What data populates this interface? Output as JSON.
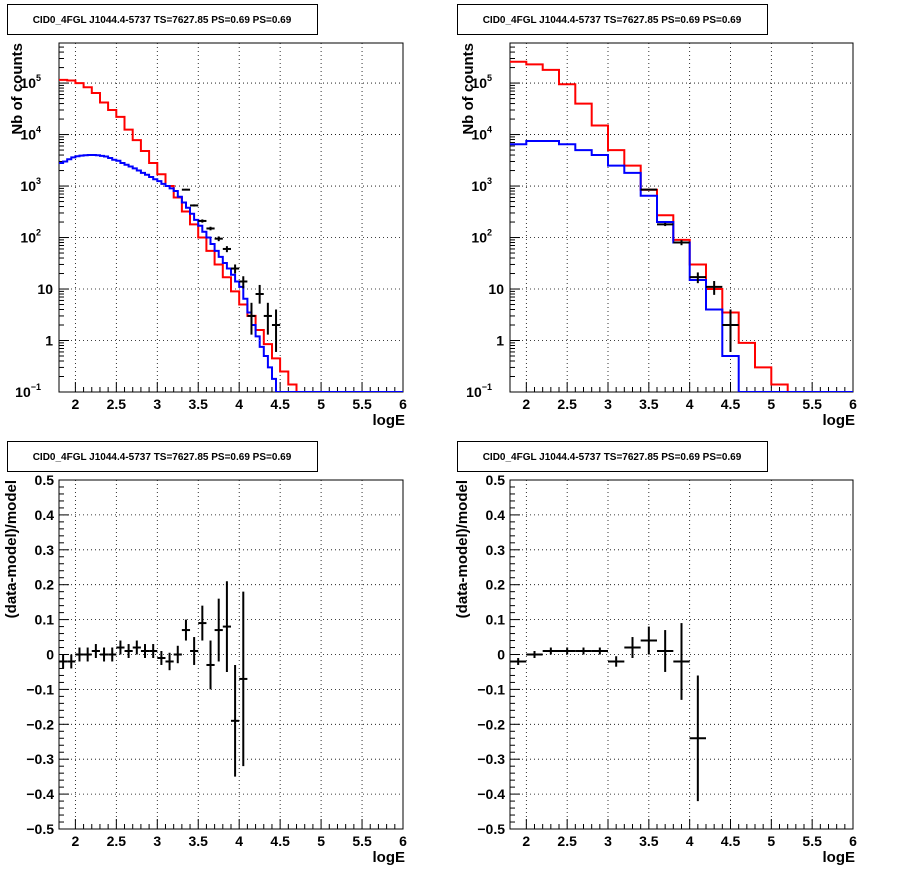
{
  "figure": {
    "panels": [
      {
        "id": "top-left",
        "title": "CID0_4FGL J1044.4-5737 TS=7627.85 PS=0.69 PS=0.69",
        "xlabel": "logE",
        "ylabel": "Nb of counts",
        "yscale": "log",
        "xlim": [
          1.8,
          6.0
        ],
        "ylim": [
          0.1,
          600000
        ],
        "xticks": [
          2,
          2.5,
          3,
          3.5,
          4,
          4.5,
          5,
          5.5,
          6
        ],
        "xtick_labels": [
          "2",
          "2.5",
          "3",
          "3.5",
          "4",
          "4.5",
          "5",
          "5.5",
          "6"
        ],
        "yticks": [
          0.1,
          1,
          10,
          100,
          1000,
          10000,
          100000
        ],
        "ytick_labels": [
          [
            "10",
            "−1"
          ],
          [
            "1",
            ""
          ],
          [
            "10",
            ""
          ],
          [
            "10",
            "2"
          ],
          [
            "10",
            "3"
          ],
          [
            "10",
            "4"
          ],
          [
            "10",
            "5"
          ]
        ],
        "grid": true
      },
      {
        "id": "top-right",
        "title": "CID0_4FGL J1044.4-5737 TS=7627.85 PS=0.69 PS=0.69",
        "xlabel": "logE",
        "ylabel": "Nb of counts",
        "yscale": "log",
        "xlim": [
          1.8,
          6.0
        ],
        "ylim": [
          0.1,
          600000
        ],
        "xticks": [
          2,
          2.5,
          3,
          3.5,
          4,
          4.5,
          5,
          5.5,
          6
        ],
        "xtick_labels": [
          "2",
          "2.5",
          "3",
          "3.5",
          "4",
          "4.5",
          "5",
          "5.5",
          "6"
        ],
        "yticks": [
          0.1,
          1,
          10,
          100,
          1000,
          10000,
          100000
        ],
        "ytick_labels": [
          [
            "10",
            "−1"
          ],
          [
            "1",
            ""
          ],
          [
            "10",
            ""
          ],
          [
            "10",
            "2"
          ],
          [
            "10",
            "3"
          ],
          [
            "10",
            "4"
          ],
          [
            "10",
            "5"
          ]
        ],
        "grid": true
      },
      {
        "id": "bottom-left",
        "title": "CID0_4FGL J1044.4-5737 TS=7627.85 PS=0.69 PS=0.69",
        "xlabel": "logE",
        "ylabel": "(data-model)/model",
        "yscale": "linear",
        "xlim": [
          1.8,
          6.0
        ],
        "ylim": [
          -0.5,
          0.5
        ],
        "xticks": [
          2,
          2.5,
          3,
          3.5,
          4,
          4.5,
          5,
          5.5,
          6
        ],
        "xtick_labels": [
          "2",
          "2.5",
          "3",
          "3.5",
          "4",
          "4.5",
          "5",
          "5.5",
          "6"
        ],
        "yticks": [
          -0.5,
          -0.4,
          -0.3,
          -0.2,
          -0.1,
          0,
          0.1,
          0.2,
          0.3,
          0.4,
          0.5
        ],
        "ytick_labels": [
          "−0.5",
          "−0.4",
          "−0.3",
          "−0.2",
          "−0.1",
          "0",
          "0.1",
          "0.2",
          "0.3",
          "0.4",
          "0.5"
        ],
        "grid": true
      },
      {
        "id": "bottom-right",
        "title": "CID0_4FGL J1044.4-5737 TS=7627.85 PS=0.69 PS=0.69",
        "xlabel": "logE",
        "ylabel": "(data-model)/model",
        "yscale": "linear",
        "xlim": [
          1.8,
          6.0
        ],
        "ylim": [
          -0.5,
          0.5
        ],
        "xticks": [
          2,
          2.5,
          3,
          3.5,
          4,
          4.5,
          5,
          5.5,
          6
        ],
        "xtick_labels": [
          "2",
          "2.5",
          "3",
          "3.5",
          "4",
          "4.5",
          "5",
          "5.5",
          "6"
        ],
        "yticks": [
          -0.5,
          -0.4,
          -0.3,
          -0.2,
          -0.1,
          0,
          0.1,
          0.2,
          0.3,
          0.4,
          0.5
        ],
        "ytick_labels": [
          "−0.5",
          "−0.4",
          "−0.3",
          "−0.2",
          "−0.1",
          "0",
          "0.1",
          "0.2",
          "0.3",
          "0.4",
          "0.5"
        ],
        "grid": true
      }
    ]
  },
  "colors": {
    "red": "#ff0000",
    "blue": "#0000ff",
    "black": "#000000",
    "grid": "#000000"
  },
  "chart_data": [
    {
      "type": "line",
      "panel": "top-left",
      "series": [
        {
          "color": "red",
          "style": "step",
          "edges": [
            1.8,
            1.9,
            2.0,
            2.1,
            2.2,
            2.3,
            2.4,
            2.5,
            2.6,
            2.7,
            2.8,
            2.9,
            3.0,
            3.1,
            3.2,
            3.3,
            3.4,
            3.5,
            3.6,
            3.7,
            3.8,
            3.9,
            4.0,
            4.1,
            4.2,
            4.3,
            4.4,
            4.5,
            4.6,
            4.7,
            4.8,
            4.9,
            5.0,
            5.1,
            5.2,
            5.3,
            5.4,
            5.5,
            5.6,
            5.7,
            5.8,
            5.9,
            6.0
          ],
          "values": [
            115000,
            112000,
            100000,
            83000,
            64000,
            42000,
            30000,
            22000,
            12500,
            7800,
            4800,
            2800,
            1700,
            1000,
            600,
            320,
            180,
            100,
            55,
            30,
            17,
            9,
            5.0,
            3.0,
            1.6,
            0.85,
            0.45,
            0.25,
            0.14,
            0.1,
            0.1,
            0.1,
            0.1,
            0.1,
            0.1,
            0.1,
            0.1,
            0.1,
            0.1,
            0.1,
            0.1,
            0.1
          ]
        },
        {
          "color": "blue",
          "style": "step",
          "edges": [
            1.8,
            1.85,
            1.9,
            1.95,
            2.0,
            2.05,
            2.1,
            2.15,
            2.2,
            2.25,
            2.3,
            2.35,
            2.4,
            2.45,
            2.5,
            2.55,
            2.6,
            2.65,
            2.7,
            2.75,
            2.8,
            2.85,
            2.9,
            2.95,
            3.0,
            3.05,
            3.1,
            3.15,
            3.2,
            3.25,
            3.3,
            3.35,
            3.4,
            3.45,
            3.5,
            3.55,
            3.6,
            3.65,
            3.7,
            3.75,
            3.8,
            3.85,
            3.9,
            3.95,
            4.0,
            4.05,
            4.1,
            4.15,
            4.2,
            4.25,
            4.3,
            4.35,
            4.4,
            4.45,
            4.5,
            4.55,
            4.6,
            4.65,
            4.7,
            4.75,
            4.8,
            4.85,
            4.9,
            4.95,
            5.0,
            5.05,
            5.1,
            5.15,
            5.2,
            5.25,
            5.3,
            5.35,
            5.4,
            5.45,
            5.5,
            5.55,
            5.6,
            5.65,
            5.7,
            5.75,
            5.8,
            5.85,
            5.9,
            5.95,
            6.0
          ],
          "values": [
            2800,
            3000,
            3300,
            3600,
            3800,
            3900,
            3950,
            4000,
            4000,
            3950,
            3850,
            3750,
            3500,
            3250,
            3100,
            2800,
            2600,
            2400,
            2200,
            2000,
            1800,
            1650,
            1500,
            1350,
            1250,
            1100,
            1000,
            900,
            800,
            620,
            480,
            380,
            290,
            220,
            170,
            130,
            100,
            75,
            55,
            42,
            32,
            25,
            19,
            14,
            11,
            6.5,
            3.5,
            2.0,
            1.2,
            0.75,
            0.5,
            0.3,
            0.18,
            0.1,
            0.1,
            0.1,
            0.1,
            0.1,
            0.1,
            0.1,
            0.1,
            0.1,
            0.1,
            0.1,
            0.1,
            0.1,
            0.1,
            0.1,
            0.1,
            0.1,
            0.1,
            0.1,
            0.1,
            0.1,
            0.1,
            0.1,
            0.1,
            0.1,
            0.1,
            0.1,
            0.1,
            0.1,
            0.1,
            0.1
          ]
        },
        {
          "color": "black",
          "style": "points",
          "x": [
            3.35,
            3.45,
            3.55,
            3.65,
            3.75,
            3.85,
            3.95,
            4.05,
            4.15,
            4.25,
            4.35,
            4.45
          ],
          "y": [
            850,
            420,
            210,
            150,
            95,
            60,
            25,
            14,
            3.0,
            8.0,
            3.0,
            2.0
          ],
          "xerr": [
            0.05,
            0.05,
            0.05,
            0.05,
            0.05,
            0.05,
            0.05,
            0.05,
            0.05,
            0.05,
            0.05,
            0.05
          ],
          "yerr_low": [
            30,
            20,
            15,
            12,
            10,
            8,
            5,
            3.7,
            1.7,
            2.8,
            1.7,
            1.4
          ],
          "yerr_high": [
            30,
            20,
            15,
            12,
            10,
            8,
            5,
            3.7,
            2.4,
            4.0,
            2.4,
            2.0
          ]
        }
      ]
    },
    {
      "type": "line",
      "panel": "top-right",
      "series": [
        {
          "color": "red",
          "style": "step",
          "edges": [
            1.8,
            2.0,
            2.2,
            2.4,
            2.6,
            2.8,
            3.0,
            3.2,
            3.4,
            3.6,
            3.8,
            4.0,
            4.2,
            4.4,
            4.6,
            4.8,
            5.0,
            5.2,
            5.4,
            5.6,
            5.8,
            6.0
          ],
          "values": [
            260000,
            230000,
            180000,
            95000,
            40000,
            15000,
            5000,
            2500,
            850,
            270,
            90,
            30,
            10,
            3.5,
            0.9,
            0.3,
            0.14,
            0.1,
            0.1,
            0.1,
            0.1
          ]
        },
        {
          "color": "blue",
          "style": "step",
          "edges": [
            1.8,
            2.0,
            2.2,
            2.4,
            2.6,
            2.8,
            3.0,
            3.2,
            3.4,
            3.6,
            3.8,
            4.0,
            4.2,
            4.4,
            4.6,
            4.8,
            5.0,
            5.2,
            5.4,
            5.6,
            5.8,
            6.0
          ],
          "values": [
            6500,
            7500,
            7500,
            6500,
            5000,
            4000,
            2500,
            1800,
            650,
            200,
            80,
            15,
            4.0,
            0.5,
            0.1,
            0.1,
            0.1,
            0.1,
            0.1,
            0.1,
            0.1
          ]
        },
        {
          "color": "black",
          "style": "points",
          "x": [
            3.5,
            3.7,
            3.9,
            4.1,
            4.3,
            4.5
          ],
          "y": [
            850,
            180,
            80,
            17,
            11,
            2.0
          ],
          "xerr": [
            0.1,
            0.1,
            0.1,
            0.1,
            0.1,
            0.1
          ],
          "yerr_low": [
            30,
            13,
            9,
            4,
            3.3,
            1.4
          ],
          "yerr_high": [
            30,
            13,
            9,
            4,
            3.3,
            2.0
          ]
        }
      ]
    },
    {
      "type": "scatter",
      "panel": "bottom-left",
      "series": [
        {
          "color": "black",
          "style": "points",
          "x": [
            1.85,
            1.95,
            2.05,
            2.15,
            2.25,
            2.35,
            2.45,
            2.55,
            2.65,
            2.75,
            2.85,
            2.95,
            3.05,
            3.15,
            3.25,
            3.35,
            3.45,
            3.55,
            3.65,
            3.75,
            3.85,
            3.95,
            4.05
          ],
          "y": [
            -0.02,
            -0.02,
            0.0,
            0.0,
            0.01,
            0.0,
            0.0,
            0.02,
            0.01,
            0.02,
            0.01,
            0.01,
            -0.01,
            -0.02,
            0.0,
            0.07,
            0.01,
            0.09,
            -0.03,
            0.07,
            0.08,
            -0.19,
            -0.07
          ],
          "xerr": [
            0.05,
            0.05,
            0.05,
            0.05,
            0.05,
            0.05,
            0.05,
            0.05,
            0.05,
            0.05,
            0.05,
            0.05,
            0.05,
            0.05,
            0.05,
            0.05,
            0.05,
            0.05,
            0.05,
            0.05,
            0.05,
            0.05,
            0.05
          ],
          "yerr": [
            0.02,
            0.02,
            0.02,
            0.02,
            0.02,
            0.02,
            0.02,
            0.02,
            0.02,
            0.02,
            0.02,
            0.02,
            0.02,
            0.025,
            0.025,
            0.03,
            0.04,
            0.05,
            0.07,
            0.09,
            0.13,
            0.16,
            0.25
          ]
        }
      ]
    },
    {
      "type": "scatter",
      "panel": "bottom-right",
      "series": [
        {
          "color": "black",
          "style": "points",
          "x": [
            1.9,
            2.1,
            2.3,
            2.5,
            2.7,
            2.9,
            3.1,
            3.3,
            3.5,
            3.7,
            3.9,
            4.1
          ],
          "y": [
            -0.02,
            0.0,
            0.01,
            0.01,
            0.01,
            0.01,
            -0.02,
            0.02,
            0.04,
            0.01,
            -0.02,
            -0.24
          ],
          "xerr": [
            0.1,
            0.1,
            0.1,
            0.1,
            0.1,
            0.1,
            0.1,
            0.1,
            0.1,
            0.1,
            0.1,
            0.1
          ],
          "yerr": [
            0.01,
            0.01,
            0.01,
            0.01,
            0.01,
            0.01,
            0.015,
            0.03,
            0.04,
            0.06,
            0.11,
            0.18
          ]
        }
      ]
    }
  ]
}
